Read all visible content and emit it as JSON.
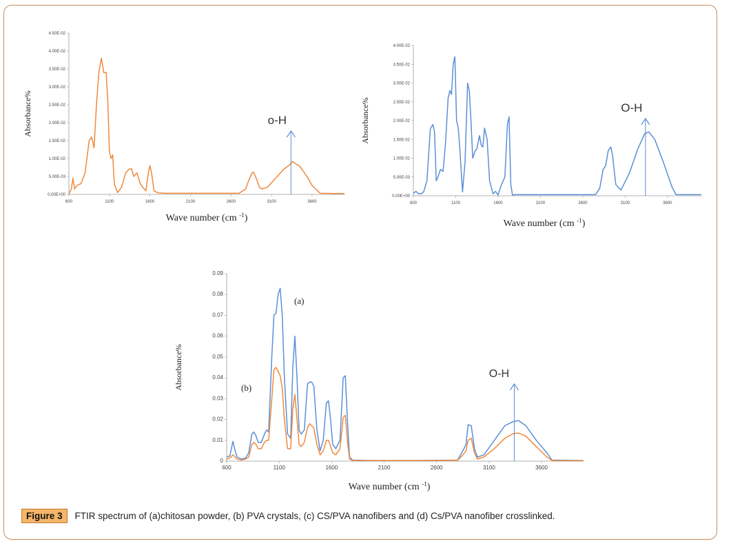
{
  "caption": {
    "label": "Figure 3",
    "text": "FTIR spectrum of (a)chitosan powder, (b) PVA crystals, (c) CS/PVA nanofibers and (d) Cs/PVA nanofiber crosslinked."
  },
  "colors": {
    "orange": "#f0883a",
    "blue": "#5b8fd6",
    "axis": "#999999"
  },
  "chart_data": [
    {
      "type": "line",
      "title": "",
      "xlabel": "Wave number (cm -1)",
      "ylabel": "Absorbance%",
      "xlim": [
        600,
        4000
      ],
      "ylim": [
        0,
        0.045
      ],
      "x_ticks": [
        "600",
        "1100",
        "1600",
        "2100",
        "2600",
        "3100",
        "3600"
      ],
      "y_ticks": [
        "0.00E+00",
        "5.00E-03",
        "1.00E-02",
        "1.50E-02",
        "2.00E-02",
        "2.50E-02",
        "3.00E-02",
        "3.50E-02",
        "4.00E-02",
        "4.50E-02"
      ],
      "annotation": "o-H",
      "annotation_x": 3340,
      "series": [
        {
          "name": "(a) chitosan powder",
          "color": "orange",
          "x": [
            600,
            630,
            650,
            670,
            700,
            750,
            800,
            850,
            880,
            910,
            940,
            970,
            1000,
            1030,
            1060,
            1080,
            1100,
            1120,
            1140,
            1160,
            1200,
            1250,
            1300,
            1340,
            1370,
            1400,
            1440,
            1480,
            1510,
            1550,
            1580,
            1600,
            1620,
            1650,
            1700,
            1800,
            2000,
            2400,
            2700,
            2780,
            2820,
            2860,
            2880,
            2920,
            2950,
            2980,
            3050,
            3150,
            3250,
            3320,
            3360,
            3400,
            3450,
            3500,
            3550,
            3600,
            3700,
            4000
          ],
          "y": [
            0.0002,
            0.0015,
            0.0045,
            0.0015,
            0.0025,
            0.003,
            0.006,
            0.015,
            0.016,
            0.013,
            0.025,
            0.034,
            0.038,
            0.034,
            0.034,
            0.026,
            0.012,
            0.01,
            0.011,
            0.003,
            0.0005,
            0.002,
            0.006,
            0.007,
            0.0072,
            0.005,
            0.006,
            0.003,
            0.002,
            0.001,
            0.006,
            0.008,
            0.006,
            0.001,
            0.0004,
            0.0003,
            0.0003,
            0.0003,
            0.0003,
            0.0015,
            0.004,
            0.006,
            0.0062,
            0.004,
            0.002,
            0.0015,
            0.002,
            0.0045,
            0.007,
            0.0082,
            0.0092,
            0.0085,
            0.0078,
            0.0062,
            0.0045,
            0.0025,
            0.0003,
            0.0002
          ]
        }
      ]
    },
    {
      "type": "line",
      "title": "",
      "xlabel": "Wave number (cm -1)",
      "ylabel": "Absorbance%",
      "xlim": [
        600,
        4000
      ],
      "ylim": [
        0,
        0.04
      ],
      "x_ticks": [
        "600",
        "1100",
        "1600",
        "2100",
        "2600",
        "3100",
        "3600"
      ],
      "y_ticks": [
        "0.00E+00",
        "5.00E-03",
        "1.00E-02",
        "1.50E-02",
        "2.00E-02",
        "2.50E-02",
        "3.00E-02",
        "3.50E-02",
        "4.00E-02"
      ],
      "annotation": "O-H",
      "annotation_x": 3340,
      "series": [
        {
          "name": "(b) PVA crystals",
          "color": "blue",
          "x": [
            600,
            630,
            660,
            690,
            720,
            760,
            800,
            830,
            850,
            870,
            890,
            920,
            950,
            980,
            1010,
            1030,
            1050,
            1070,
            1090,
            1110,
            1130,
            1150,
            1180,
            1210,
            1240,
            1260,
            1280,
            1300,
            1330,
            1350,
            1380,
            1400,
            1420,
            1440,
            1470,
            1500,
            1540,
            1570,
            1600,
            1640,
            1680,
            1710,
            1730,
            1750,
            1770,
            1800,
            2000,
            2400,
            2750,
            2800,
            2840,
            2870,
            2900,
            2930,
            2950,
            2990,
            3050,
            3150,
            3250,
            3330,
            3380,
            3450,
            3550,
            3650,
            3700,
            4000
          ],
          "y": [
            0.0006,
            0.0012,
            0.0005,
            0.0005,
            0.001,
            0.004,
            0.0178,
            0.019,
            0.017,
            0.004,
            0.005,
            0.007,
            0.0065,
            0.014,
            0.026,
            0.028,
            0.027,
            0.035,
            0.037,
            0.02,
            0.018,
            0.012,
            0.001,
            0.009,
            0.03,
            0.028,
            0.02,
            0.01,
            0.012,
            0.0125,
            0.016,
            0.0135,
            0.013,
            0.018,
            0.015,
            0.004,
            0.0005,
            0.0012,
            0.0002,
            0.003,
            0.005,
            0.019,
            0.021,
            0.003,
            0.0002,
            0.0003,
            0.0003,
            0.0003,
            0.0003,
            0.002,
            0.007,
            0.008,
            0.012,
            0.013,
            0.011,
            0.003,
            0.0015,
            0.006,
            0.0125,
            0.0165,
            0.017,
            0.015,
            0.009,
            0.0025,
            0.0003,
            0.0003
          ]
        }
      ]
    },
    {
      "type": "line",
      "title": "",
      "xlabel": "Wave number (cm -1)",
      "ylabel": "Absorbance%",
      "xlim": [
        600,
        4000
      ],
      "ylim": [
        0,
        0.09
      ],
      "x_ticks": [
        "600",
        "1100",
        "1600",
        "2100",
        "2600",
        "3100",
        "3600"
      ],
      "y_ticks": [
        "0",
        "0.01",
        "0.02",
        "0.03",
        "0.04",
        "0.05",
        "0.06",
        "0.07",
        "0.08",
        "0.09"
      ],
      "annotation": "O-H",
      "annotation_x": 3340,
      "labels": [
        "(a)",
        "(b)"
      ],
      "series": [
        {
          "name": "(c) CS/PVA nanofibers",
          "color": "blue",
          "x": [
            600,
            630,
            660,
            680,
            700,
            740,
            780,
            810,
            840,
            860,
            880,
            900,
            930,
            960,
            980,
            1000,
            1030,
            1050,
            1070,
            1090,
            1110,
            1130,
            1150,
            1180,
            1210,
            1230,
            1250,
            1270,
            1290,
            1310,
            1340,
            1370,
            1390,
            1410,
            1430,
            1460,
            1490,
            1520,
            1550,
            1570,
            1590,
            1610,
            1640,
            1680,
            1710,
            1730,
            1750,
            1770,
            1800,
            2000,
            2400,
            2800,
            2850,
            2880,
            2900,
            2930,
            2960,
            2990,
            3050,
            3150,
            3250,
            3330,
            3380,
            3450,
            3550,
            3650,
            3700,
            4000
          ],
          "y": [
            0.002,
            0.0025,
            0.0095,
            0.005,
            0.002,
            0.001,
            0.0015,
            0.004,
            0.013,
            0.014,
            0.012,
            0.009,
            0.009,
            0.013,
            0.015,
            0.014,
            0.05,
            0.07,
            0.071,
            0.08,
            0.083,
            0.07,
            0.04,
            0.013,
            0.011,
            0.045,
            0.06,
            0.04,
            0.015,
            0.013,
            0.015,
            0.037,
            0.038,
            0.038,
            0.036,
            0.015,
            0.005,
            0.01,
            0.028,
            0.029,
            0.02,
            0.008,
            0.006,
            0.01,
            0.04,
            0.041,
            0.02,
            0.002,
            0.0005,
            0.0003,
            0.0003,
            0.0005,
            0.005,
            0.008,
            0.0175,
            0.017,
            0.006,
            0.002,
            0.003,
            0.01,
            0.017,
            0.019,
            0.0195,
            0.017,
            0.01,
            0.004,
            0.0005,
            0.0003
          ]
        },
        {
          "name": "(d) Cs/PVA nanofiber crosslinked",
          "color": "orange",
          "x": [
            600,
            630,
            660,
            680,
            700,
            740,
            780,
            810,
            840,
            860,
            880,
            900,
            930,
            960,
            980,
            1000,
            1030,
            1050,
            1070,
            1090,
            1110,
            1130,
            1150,
            1180,
            1210,
            1230,
            1250,
            1270,
            1290,
            1310,
            1340,
            1370,
            1390,
            1410,
            1430,
            1460,
            1490,
            1520,
            1550,
            1570,
            1590,
            1610,
            1640,
            1680,
            1710,
            1730,
            1750,
            1770,
            1800,
            2000,
            2400,
            2800,
            2850,
            2880,
            2900,
            2930,
            2960,
            2990,
            3050,
            3150,
            3250,
            3330,
            3380,
            3450,
            3550,
            3650,
            3700,
            4000
          ],
          "y": [
            0.001,
            0.0015,
            0.003,
            0.002,
            0.001,
            0.0005,
            0.001,
            0.002,
            0.008,
            0.009,
            0.008,
            0.006,
            0.006,
            0.009,
            0.01,
            0.01,
            0.03,
            0.044,
            0.045,
            0.043,
            0.041,
            0.035,
            0.02,
            0.006,
            0.006,
            0.025,
            0.032,
            0.02,
            0.008,
            0.007,
            0.009,
            0.016,
            0.018,
            0.017,
            0.016,
            0.008,
            0.003,
            0.005,
            0.01,
            0.01,
            0.007,
            0.004,
            0.003,
            0.006,
            0.021,
            0.022,
            0.01,
            0.001,
            0.0003,
            0.0003,
            0.0003,
            0.0004,
            0.003,
            0.005,
            0.01,
            0.011,
            0.004,
            0.001,
            0.002,
            0.006,
            0.011,
            0.0132,
            0.0135,
            0.012,
            0.007,
            0.002,
            0.0003,
            0.0002
          ]
        }
      ]
    }
  ]
}
